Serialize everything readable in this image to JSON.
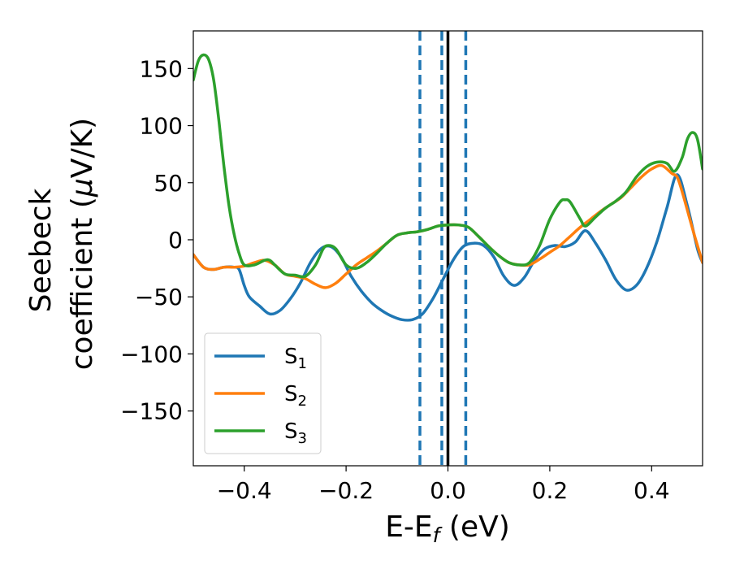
{
  "chart_data": {
    "type": "line",
    "title": "",
    "xlabel": "E-E",
    "xlabel_sub": "f",
    "xlabel_unit": " (eV)",
    "ylabel_line1": "Seebeck",
    "ylabel_line2_a": "coefficient  (",
    "ylabel_mu": "μ",
    "ylabel_line2_b": "V/K)",
    "xlim": [
      -0.5,
      0.5
    ],
    "ylim": [
      -198,
      183
    ],
    "xticks": [
      -0.4,
      -0.2,
      0.0,
      0.2,
      0.4
    ],
    "xtick_labels": [
      "−0.4",
      "−0.2",
      "0.0",
      "0.2",
      "0.4"
    ],
    "yticks": [
      150,
      100,
      50,
      0,
      -50,
      -100,
      -150
    ],
    "ytick_labels": [
      "150",
      "100",
      "50",
      "0",
      "−50",
      "−100",
      "−150"
    ],
    "grid": false,
    "legend_position": "lower-left",
    "vlines": [
      {
        "x": -0.055,
        "color": "#1f77b4",
        "style": "dashed"
      },
      {
        "x": -0.012,
        "color": "#1f77b4",
        "style": "dashed"
      },
      {
        "x": 0.035,
        "color": "#1f77b4",
        "style": "dashed"
      },
      {
        "x": 0.0,
        "color": "#000000",
        "style": "solid"
      }
    ],
    "series": [
      {
        "name": "S",
        "sub": "1",
        "color": "#1f77b4",
        "points": [
          [
            -0.5,
            -13
          ],
          [
            -0.48,
            -24
          ],
          [
            -0.46,
            -26
          ],
          [
            -0.44,
            -24
          ],
          [
            -0.42,
            -24
          ],
          [
            -0.41,
            -26
          ],
          [
            -0.4,
            -40
          ],
          [
            -0.39,
            -50
          ],
          [
            -0.37,
            -58
          ],
          [
            -0.35,
            -65
          ],
          [
            -0.33,
            -62
          ],
          [
            -0.31,
            -52
          ],
          [
            -0.29,
            -38
          ],
          [
            -0.27,
            -20
          ],
          [
            -0.25,
            -8
          ],
          [
            -0.23,
            -6
          ],
          [
            -0.21,
            -15
          ],
          [
            -0.19,
            -32
          ],
          [
            -0.17,
            -45
          ],
          [
            -0.15,
            -55
          ],
          [
            -0.13,
            -62
          ],
          [
            -0.11,
            -67
          ],
          [
            -0.09,
            -70
          ],
          [
            -0.07,
            -70
          ],
          [
            -0.05,
            -65
          ],
          [
            -0.03,
            -52
          ],
          [
            -0.01,
            -35
          ],
          [
            0.01,
            -18
          ],
          [
            0.03,
            -6
          ],
          [
            0.05,
            -3
          ],
          [
            0.07,
            -5
          ],
          [
            0.09,
            -15
          ],
          [
            0.11,
            -32
          ],
          [
            0.13,
            -40
          ],
          [
            0.15,
            -33
          ],
          [
            0.17,
            -18
          ],
          [
            0.19,
            -8
          ],
          [
            0.21,
            -5
          ],
          [
            0.23,
            -6
          ],
          [
            0.25,
            -2
          ],
          [
            0.27,
            8
          ],
          [
            0.29,
            -3
          ],
          [
            0.31,
            -18
          ],
          [
            0.33,
            -35
          ],
          [
            0.35,
            -44
          ],
          [
            0.37,
            -40
          ],
          [
            0.39,
            -25
          ],
          [
            0.41,
            -2
          ],
          [
            0.43,
            28
          ],
          [
            0.45,
            57
          ],
          [
            0.47,
            30
          ],
          [
            0.49,
            -8
          ],
          [
            0.5,
            -20
          ]
        ]
      },
      {
        "name": "S",
        "sub": "2",
        "color": "#ff7f0e",
        "points": [
          [
            -0.5,
            -13
          ],
          [
            -0.48,
            -24
          ],
          [
            -0.46,
            -26
          ],
          [
            -0.44,
            -24
          ],
          [
            -0.42,
            -24
          ],
          [
            -0.4,
            -23
          ],
          [
            -0.38,
            -20
          ],
          [
            -0.36,
            -18
          ],
          [
            -0.34,
            -22
          ],
          [
            -0.32,
            -30
          ],
          [
            -0.3,
            -32
          ],
          [
            -0.28,
            -34
          ],
          [
            -0.26,
            -39
          ],
          [
            -0.24,
            -42
          ],
          [
            -0.22,
            -38
          ],
          [
            -0.2,
            -30
          ],
          [
            -0.18,
            -22
          ],
          [
            -0.16,
            -16
          ],
          [
            -0.14,
            -10
          ],
          [
            -0.12,
            -3
          ],
          [
            -0.1,
            4
          ],
          [
            -0.08,
            6
          ],
          [
            -0.06,
            7
          ],
          [
            -0.04,
            9
          ],
          [
            -0.02,
            12
          ],
          [
            0.0,
            13
          ],
          [
            0.02,
            13
          ],
          [
            0.04,
            11
          ],
          [
            0.06,
            3
          ],
          [
            0.08,
            -6
          ],
          [
            0.1,
            -14
          ],
          [
            0.12,
            -20
          ],
          [
            0.14,
            -22
          ],
          [
            0.16,
            -22
          ],
          [
            0.18,
            -17
          ],
          [
            0.2,
            -11
          ],
          [
            0.22,
            -5
          ],
          [
            0.24,
            3
          ],
          [
            0.26,
            11
          ],
          [
            0.28,
            18
          ],
          [
            0.3,
            25
          ],
          [
            0.32,
            31
          ],
          [
            0.34,
            37
          ],
          [
            0.36,
            46
          ],
          [
            0.38,
            55
          ],
          [
            0.4,
            62
          ],
          [
            0.42,
            65
          ],
          [
            0.44,
            58
          ],
          [
            0.45,
            55
          ],
          [
            0.46,
            42
          ],
          [
            0.48,
            10
          ],
          [
            0.5,
            -20
          ]
        ]
      },
      {
        "name": "S",
        "sub": "3",
        "color": "#2ca02c",
        "points": [
          [
            -0.5,
            140
          ],
          [
            -0.49,
            157
          ],
          [
            -0.48,
            162
          ],
          [
            -0.47,
            158
          ],
          [
            -0.46,
            140
          ],
          [
            -0.45,
            105
          ],
          [
            -0.44,
            65
          ],
          [
            -0.43,
            30
          ],
          [
            -0.42,
            5
          ],
          [
            -0.41,
            -12
          ],
          [
            -0.4,
            -22
          ],
          [
            -0.38,
            -22
          ],
          [
            -0.36,
            -18
          ],
          [
            -0.35,
            -18
          ],
          [
            -0.34,
            -22
          ],
          [
            -0.32,
            -30
          ],
          [
            -0.3,
            -31
          ],
          [
            -0.28,
            -32
          ],
          [
            -0.26,
            -22
          ],
          [
            -0.245,
            -8
          ],
          [
            -0.235,
            -5
          ],
          [
            -0.22,
            -8
          ],
          [
            -0.2,
            -22
          ],
          [
            -0.18,
            -25
          ],
          [
            -0.16,
            -20
          ],
          [
            -0.14,
            -12
          ],
          [
            -0.12,
            -3
          ],
          [
            -0.1,
            4
          ],
          [
            -0.08,
            6
          ],
          [
            -0.06,
            7
          ],
          [
            -0.04,
            9
          ],
          [
            -0.02,
            12
          ],
          [
            0.0,
            13
          ],
          [
            0.02,
            13
          ],
          [
            0.04,
            11
          ],
          [
            0.06,
            3
          ],
          [
            0.08,
            -6
          ],
          [
            0.1,
            -14
          ],
          [
            0.12,
            -20
          ],
          [
            0.14,
            -22
          ],
          [
            0.16,
            -20
          ],
          [
            0.18,
            -5
          ],
          [
            0.2,
            18
          ],
          [
            0.22,
            33
          ],
          [
            0.23,
            35
          ],
          [
            0.24,
            33
          ],
          [
            0.26,
            18
          ],
          [
            0.27,
            12
          ],
          [
            0.29,
            20
          ],
          [
            0.31,
            28
          ],
          [
            0.33,
            34
          ],
          [
            0.35,
            42
          ],
          [
            0.37,
            55
          ],
          [
            0.39,
            64
          ],
          [
            0.41,
            68
          ],
          [
            0.43,
            67
          ],
          [
            0.445,
            60
          ],
          [
            0.46,
            72
          ],
          [
            0.47,
            88
          ],
          [
            0.48,
            94
          ],
          [
            0.49,
            88
          ],
          [
            0.5,
            62
          ]
        ]
      }
    ]
  }
}
